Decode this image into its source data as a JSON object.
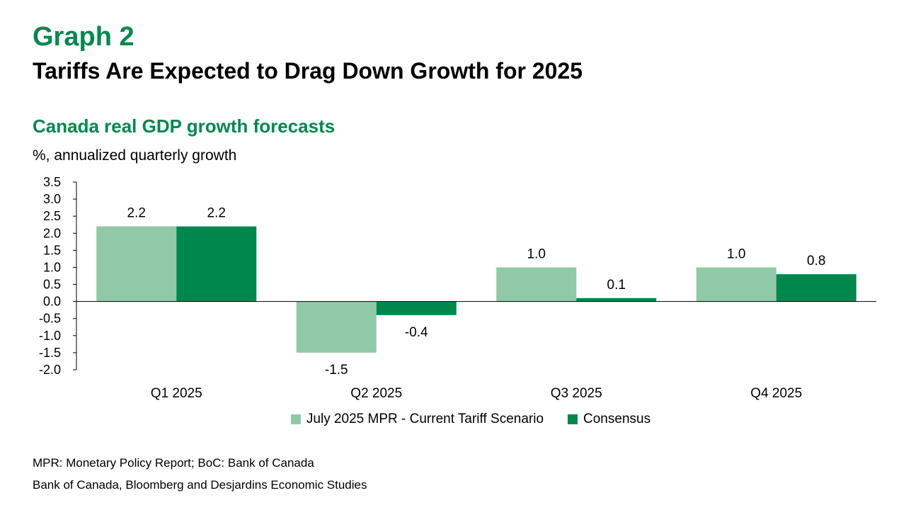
{
  "header": {
    "graph_label": "Graph 2",
    "title": "Tariffs Are Expected to Drag Down Growth for 2025"
  },
  "chart_data": {
    "type": "bar",
    "title": "Canada real GDP growth forecasts",
    "subtitle": "%, annualized quarterly growth",
    "categories": [
      "Q1 2025",
      "Q2 2025",
      "Q3 2025",
      "Q4 2025"
    ],
    "series": [
      {
        "name": "July 2025 MPR - Current Tariff Scenario",
        "values": [
          2.2,
          -1.5,
          1.0,
          1.0
        ],
        "labels": [
          "2.2",
          "-1.5",
          "1.0",
          "1.0"
        ],
        "color": "#90c9a7"
      },
      {
        "name": "Consensus",
        "values": [
          2.2,
          -0.4,
          0.1,
          0.8
        ],
        "labels": [
          "2.2",
          "-0.4",
          "0.1",
          "0.8"
        ],
        "color": "#00874e"
      }
    ],
    "ylim": [
      -2.0,
      3.5
    ],
    "yticks": [
      "-2.0",
      "-1.5",
      "-1.0",
      "-0.5",
      "0.0",
      "0.5",
      "1.0",
      "1.5",
      "2.0",
      "2.5",
      "3.0",
      "3.5"
    ],
    "grid": false,
    "legend_position": "bottom"
  },
  "notes": {
    "abbreviations": "MPR: Monetary Policy Report; BoC: Bank of Canada",
    "sources": "Bank of Canada, Bloomberg and Desjardins Economic Studies"
  }
}
